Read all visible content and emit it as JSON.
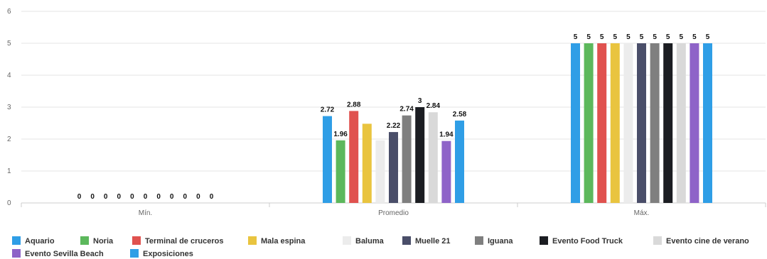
{
  "chart_data": {
    "type": "bar",
    "title": "",
    "xlabel": "",
    "ylabel": "",
    "categories": [
      "Mín.",
      "Promedio",
      "Máx."
    ],
    "ylim": [
      0,
      6
    ],
    "yticks": [
      0,
      1,
      2,
      3,
      4,
      5,
      6
    ],
    "grid": true,
    "legend_position": "bottom",
    "series": [
      {
        "name": "Aquario",
        "color": "#2f9ee6",
        "values": [
          0,
          2.72,
          5
        ],
        "labels": [
          "0",
          "2.72",
          "5"
        ]
      },
      {
        "name": "Noria",
        "color": "#5cb85c",
        "values": [
          0,
          1.96,
          5
        ],
        "labels": [
          "0",
          "1.96",
          "5"
        ]
      },
      {
        "name": "Terminal de cruceros",
        "color": "#e0524f",
        "values": [
          0,
          2.88,
          5
        ],
        "labels": [
          "0",
          "2.88",
          "5"
        ]
      },
      {
        "name": "Mala espina",
        "color": "#e9c43f",
        "values": [
          0,
          2.48,
          5
        ],
        "labels": [
          "0",
          "",
          "5"
        ]
      },
      {
        "name": "Baluma",
        "color": "#ececec",
        "values": [
          0,
          1.96,
          5
        ],
        "labels": [
          "0",
          "",
          "5"
        ]
      },
      {
        "name": "Muelle 21",
        "color": "#4a4e69",
        "values": [
          0,
          2.22,
          5
        ],
        "labels": [
          "0",
          "2.22",
          "5"
        ]
      },
      {
        "name": "Iguana",
        "color": "#7f7f7f",
        "values": [
          0,
          2.74,
          5
        ],
        "labels": [
          "0",
          "2.74",
          "5"
        ]
      },
      {
        "name": "Evento Food Truck",
        "color": "#1b1d22",
        "values": [
          0,
          3,
          5
        ],
        "labels": [
          "0",
          "3",
          "5"
        ]
      },
      {
        "name": "Evento cine de verano",
        "color": "#d9d9d9",
        "values": [
          0,
          2.84,
          5
        ],
        "labels": [
          "0",
          "2.84",
          "5"
        ]
      },
      {
        "name": "Evento Sevilla Beach",
        "color": "#8e63c8",
        "values": [
          0,
          1.94,
          5
        ],
        "labels": [
          "0",
          "1.94",
          "5"
        ]
      },
      {
        "name": "Exposiciones",
        "color": "#2f9ee6",
        "values": [
          0,
          2.58,
          5
        ],
        "labels": [
          "0",
          "2.58",
          "5"
        ]
      }
    ]
  }
}
